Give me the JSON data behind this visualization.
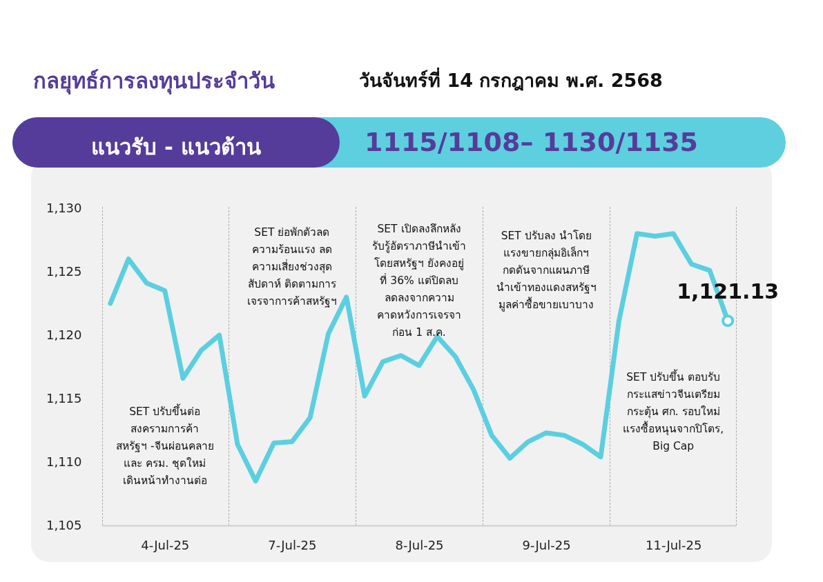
{
  "chart_data": {
    "type": "line",
    "title": "กลยุทธ์การลงทุนประจำวัน",
    "subtitle": "วันจันทร์ที่ 14 กรกฎาคม พ.ศ. 2568",
    "categories": [
      null,
      null,
      null,
      "4-Jul-25",
      null,
      null,
      null,
      null,
      null,
      null,
      "7-Jul-25",
      null,
      null,
      null,
      null,
      null,
      null,
      "8-Jul-25",
      null,
      null,
      null,
      null,
      null,
      null,
      "9-Jul-25",
      null,
      null,
      null,
      null,
      null,
      null,
      "11-Jul-25",
      null,
      null,
      null
    ],
    "series": [
      {
        "color": "#5bcfe0",
        "values": [
          1122.5,
          1126.0,
          1124.1,
          1123.5,
          1116.6,
          1118.8,
          1120.0,
          1111.4,
          1108.5,
          1111.5,
          1111.6,
          1113.5,
          1120.1,
          1123.0,
          1115.2,
          1117.9,
          1118.4,
          1117.6,
          1119.9,
          1118.3,
          1115.7,
          1112.1,
          1110.3,
          1111.6,
          1112.3,
          1112.1,
          1111.4,
          1110.4,
          1121.1,
          1128,
          1127.8,
          1128,
          1125.6,
          1125.1,
          1121.13
        ]
      }
    ],
    "ylim": [
      1105,
      1130
    ],
    "yticks": [
      {
        "value": 1105,
        "label": "1,105"
      },
      {
        "value": 1110,
        "label": "1,110"
      },
      {
        "value": 1115,
        "label": "1,115"
      },
      {
        "value": 1120,
        "label": "1,120"
      },
      {
        "value": 1125,
        "label": "1,125"
      },
      {
        "value": 1130,
        "label": "1,130"
      }
    ],
    "grid": false,
    "marker": "none",
    "line_style": "solid",
    "annotations": [
      "แนวรับ - แนวต้าน",
      "1115/1108– 1130/1135",
      "SET ปรับขึ้นต่อ\nสงครามการค้า\nสหรัฐฯ -จีนผ่อนคลาย\nและ ครม. ชุดใหม่\nเดินหน้าทำงานต่อ",
      "SET ย่อพักตัวลด\nความร้อนแรง ลด\nความเสี่ยงช่วงสุด\nสัปดาห์ ติดตามการ\nเจรจาการค้าสหรัฐฯ",
      "SET เปิดลงลึกหลัง\nรับรู้อัตราภาษีนำเข้า\nโดยสหรัฐฯ ยังคงอยู่\nที่ 36% แต่ปิดลบ\nลดลงจากความ\nคาดหวังการเจรจา\nก่อน 1 ส.ค.",
      "SET ปรับลง นำโดย\nแรงขายกลุ่มอิเล็กฯ\nกดดันจากแผนภาษี\nนำเข้าทองแดงสหรัฐฯ\nมูลค่าซื้อขายเบาบาง",
      "SET ปรับขึ้น ตอบรับ\nกระแสข่าวจีนเตรียม\nกระตุ้น ศก. รอบใหม่\nแรงซื้อหนุนจากปิโตร,\nBig Cap",
      {
        "text": "1,121.13",
        "y": 1121.13
      }
    ]
  }
}
